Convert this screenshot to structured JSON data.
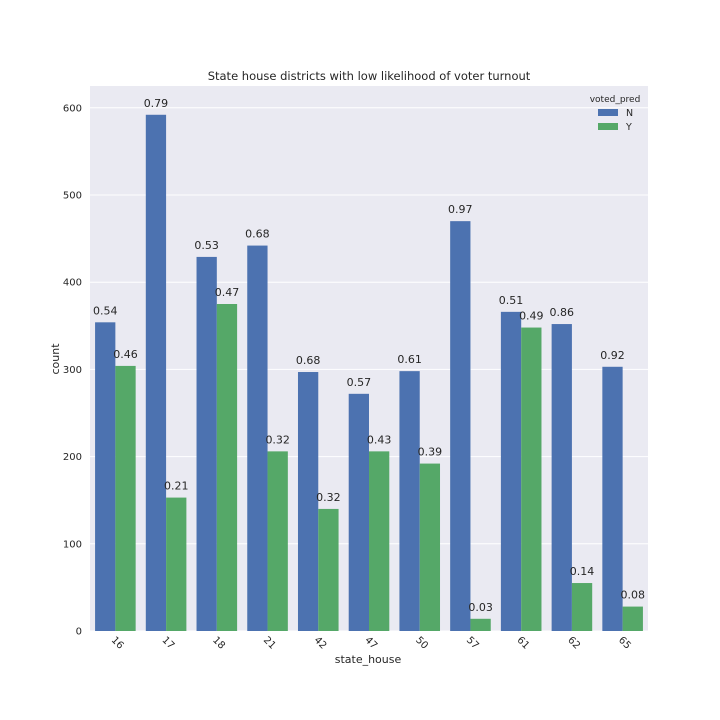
{
  "chart_data": {
    "type": "bar",
    "title": "State house districts with low likelihood of voter turnout",
    "xlabel": "state_house",
    "ylabel": "count",
    "ylim": [
      0,
      625
    ],
    "yticks": [
      0,
      100,
      200,
      300,
      400,
      500,
      600
    ],
    "categories": [
      "16",
      "17",
      "18",
      "21",
      "42",
      "47",
      "50",
      "57",
      "61",
      "62",
      "65"
    ],
    "legend": {
      "title": "voted_pred",
      "placement": "top-right"
    },
    "grid": true,
    "series": [
      {
        "name": "N",
        "color": "#4c72b0",
        "values": [
          354,
          592,
          429,
          442,
          297,
          272,
          298,
          470,
          366,
          352,
          303
        ],
        "labels": [
          "0.54",
          "0.79",
          "0.53",
          "0.68",
          "0.68",
          "0.57",
          "0.61",
          "0.97",
          "0.51",
          "0.86",
          "0.92"
        ]
      },
      {
        "name": "Y",
        "color": "#55a868",
        "values": [
          304,
          153,
          375,
          206,
          140,
          206,
          192,
          14,
          348,
          55,
          28
        ],
        "labels": [
          "0.46",
          "0.21",
          "0.47",
          "0.32",
          "0.32",
          "0.43",
          "0.39",
          "0.03",
          "0.49",
          "0.14",
          "0.08"
        ]
      }
    ]
  }
}
